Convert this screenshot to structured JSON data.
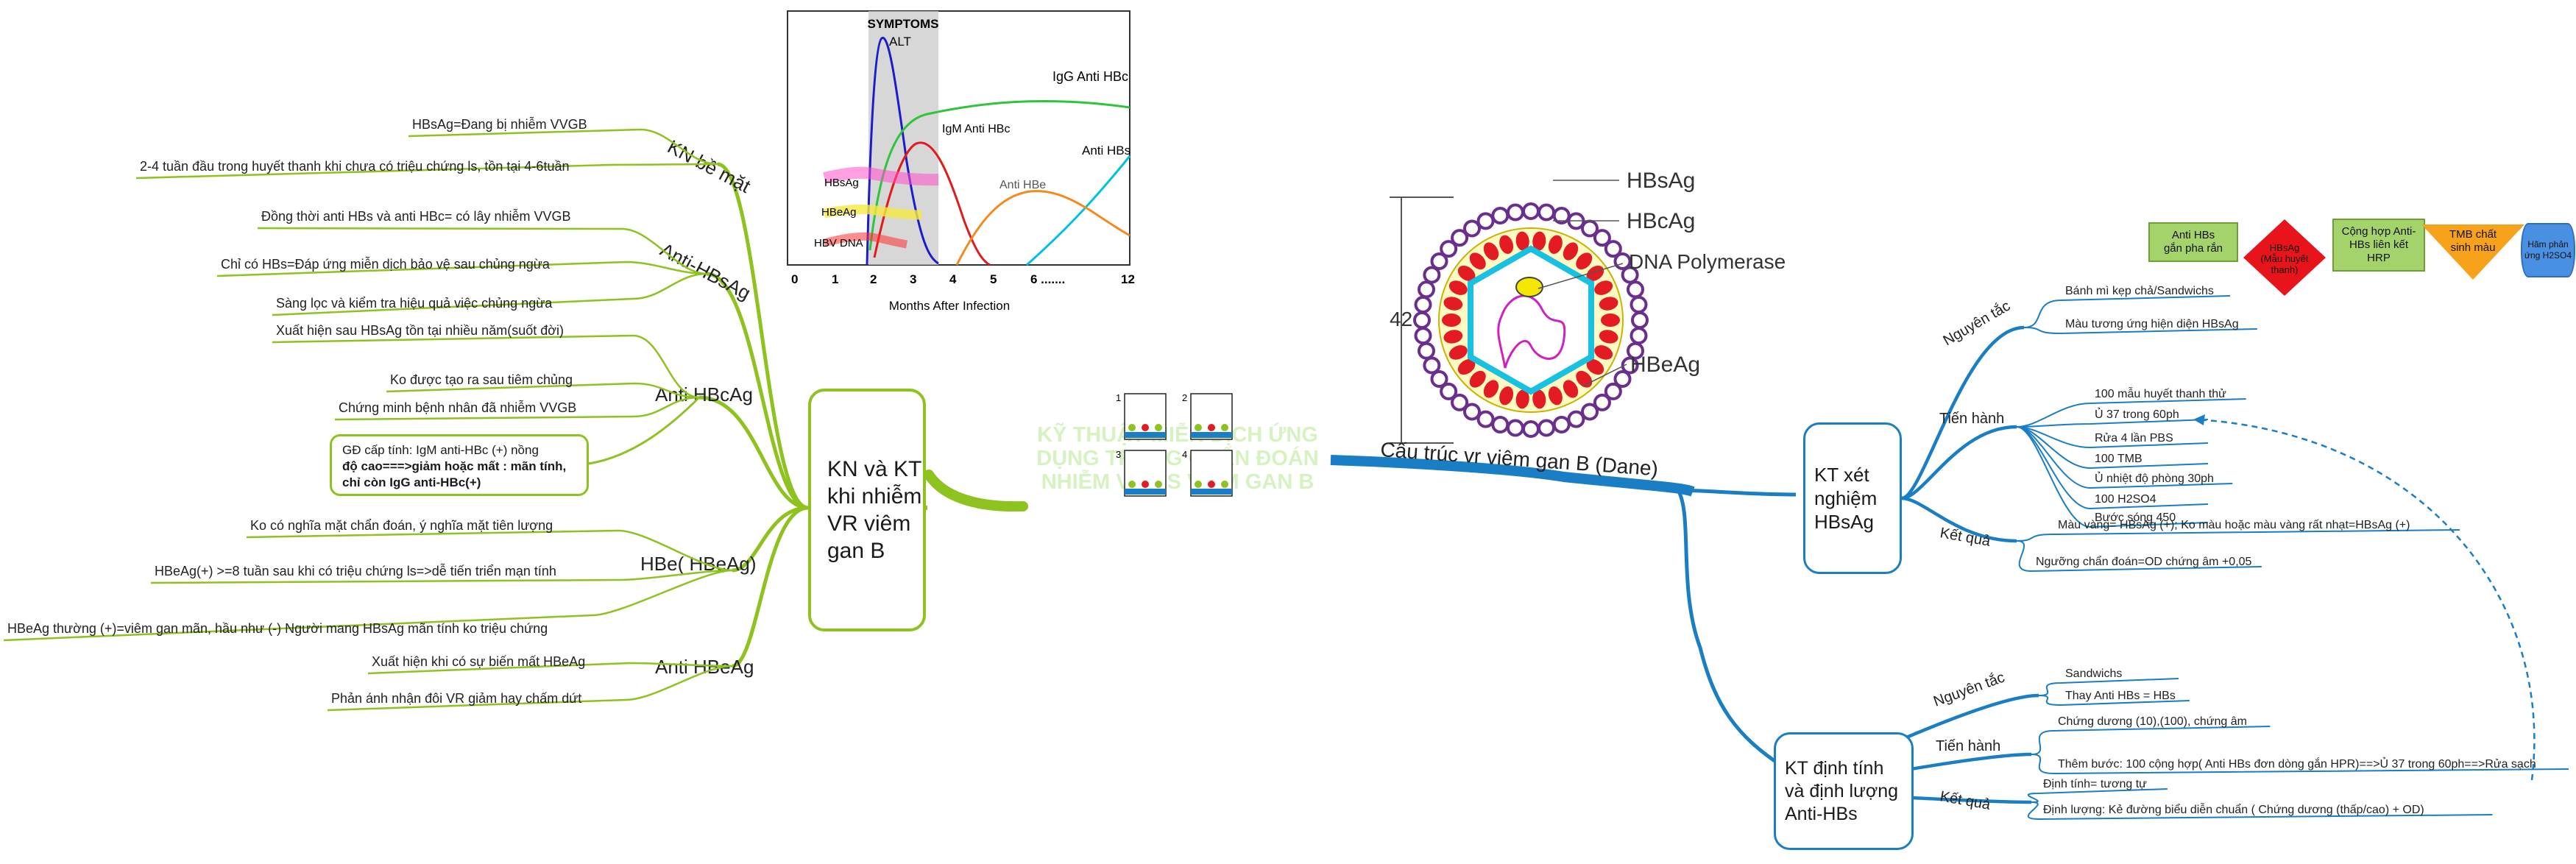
{
  "central": {
    "title_lines": [
      "KỸ THUẬT MIỄN DỊCH ỨNG",
      "DỤNG TRONG CHẨN ĐOÁN",
      "NHIỄM VIRUS VIÊM GAN B"
    ],
    "figure_labels": [
      "1",
      "2",
      "3",
      "4"
    ]
  },
  "left_topic": {
    "title_lines": [
      "KN và KT",
      "khi nhiễm",
      "VR viêm",
      "gan B"
    ],
    "branches": [
      {
        "label": "KN bề mặt",
        "children": [
          "HBsAg=Đang bị nhiễm VVGB",
          "2-4 tuần đầu trong huyết thanh khi chưa có triệu chứng ls, tồn tại 4-6tuần"
        ]
      },
      {
        "label": "Anti-HBsAg",
        "children": [
          "Đồng thời anti HBs và anti HBc= có lây nhiễm VVGB",
          "Chỉ có HBs=Đáp ứng miễn dịch bảo vệ sau chủng ngừa",
          "Sàng lọc và kiểm tra hiệu quả việc chủng ngừa"
        ]
      },
      {
        "label": "Anti HBcAg",
        "children": [
          "Xuất hiện sau HBsAg tồn tại nhiều năm(suốt đời)",
          "Ko được tạo ra sau tiêm chủng",
          "Chứng minh bệnh nhân đã nhiễm VVGB"
        ],
        "note_lines": [
          "GĐ cấp tính: IgM anti-HBc (+) nồng",
          "độ cao===>giảm hoặc mất : mãn tính,",
          "chỉ còn IgG anti-HBc(+)"
        ]
      },
      {
        "label": "HBe( HBeAg)",
        "children": [
          "Ko có nghĩa mặt chẩn đoán, ý nghĩa mặt tiên lượng",
          "HBeAg(+) >=8 tuần sau khi có triệu chứng ls=>dễ tiến triển mạn tính",
          "HBeAg thường (+)=viêm gan mãn, hầu như (-) Người mang HBsAg mãn tính ko triệu chứng"
        ]
      },
      {
        "label": "Anti HBeAg",
        "children": [
          "Xuất hiện khi có sự biến mất HBeAg",
          "Phản ánh nhận đôi VR giảm hay chấm dứt"
        ]
      }
    ]
  },
  "infection_chart": {
    "symptoms_label": "SYMPTOMS",
    "x_label": "Months After Infection",
    "x_ticks": [
      "0",
      "1",
      "2",
      "3",
      "4",
      "5",
      "6 .......",
      "12"
    ],
    "curves": [
      "ALT",
      "IgG Anti HBc",
      "IgM Anti HBc",
      "Anti HBs",
      "Anti HBe",
      "HBsAg",
      "HBeAg",
      "HBV DNA"
    ]
  },
  "virus": {
    "labels": [
      "HBsAg",
      "HBcAg",
      "DNA Polymerase",
      "HBeAg"
    ],
    "size_label": "42nm",
    "caption": "Cấu trúc vr viêm gan B (Dane)"
  },
  "legend": [
    {
      "text_lines": [
        "Anti HBs",
        "gắn pha rắn"
      ],
      "color": "#a5d36b"
    },
    {
      "text_lines": [
        "HBsAg",
        "(Mẫu huyết",
        "thanh)"
      ],
      "color": "#e8141c"
    },
    {
      "text_lines": [
        "Cộng hợp Anti-",
        "HBs liên kết",
        "HRP"
      ],
      "color": "#a5d36b"
    },
    {
      "text_lines": [
        "TMB chất",
        "sinh màu"
      ],
      "color": "#f7a21b"
    },
    {
      "text_lines": [
        "Hãm phản",
        "ứng H2SO4"
      ],
      "color": "#4a90e2"
    }
  ],
  "right_top": {
    "title_lines": [
      "KT xét",
      "nghiệm",
      "HBsAg"
    ],
    "branches": [
      {
        "label": "Nguyên tắc",
        "children": [
          "Bánh mì kẹp chả/Sandwichs",
          "Màu tương ứng hiện diện HBsAg"
        ]
      },
      {
        "label": "Tiến hành",
        "children": [
          "100 mẫu huyết thanh thử",
          "Ủ 37 trong 60ph",
          "Rửa 4 lần PBS",
          "100 TMB",
          "Ủ nhiệt độ phòng 30ph",
          "100 H2SO4",
          "Bước sóng 450"
        ]
      },
      {
        "label": "Kết quả",
        "children": [
          "Màu vàng= HBsAg (+); Ko màu hoặc màu vàng rất nhạt=HBsAg (+)",
          "Ngưỡng chẩn đoán=OD chứng âm +0,05"
        ]
      }
    ]
  },
  "right_bottom": {
    "title_lines": [
      "KT định tính",
      "và định lượng",
      "Anti-HBs"
    ],
    "branches": [
      {
        "label": "Nguyên tắc",
        "children": [
          "Sandwichs",
          "Thay Anti HBs = HBs"
        ]
      },
      {
        "label": "Tiến hành",
        "children": [
          "Chứng dương (10),(100), chứng âm",
          "Thêm bước: 100 cộng hợp( Anti HBs đơn dòng gắn HPR)==>Ủ 37 trong 60ph==>Rửa sạch"
        ]
      },
      {
        "label": "Kết quả",
        "children": [
          "Định tính= tương tự",
          "Định lượng: Kẻ đường biểu diễn chuẩn ( Chứng dương (thấp/cao) + OD)"
        ]
      }
    ]
  }
}
